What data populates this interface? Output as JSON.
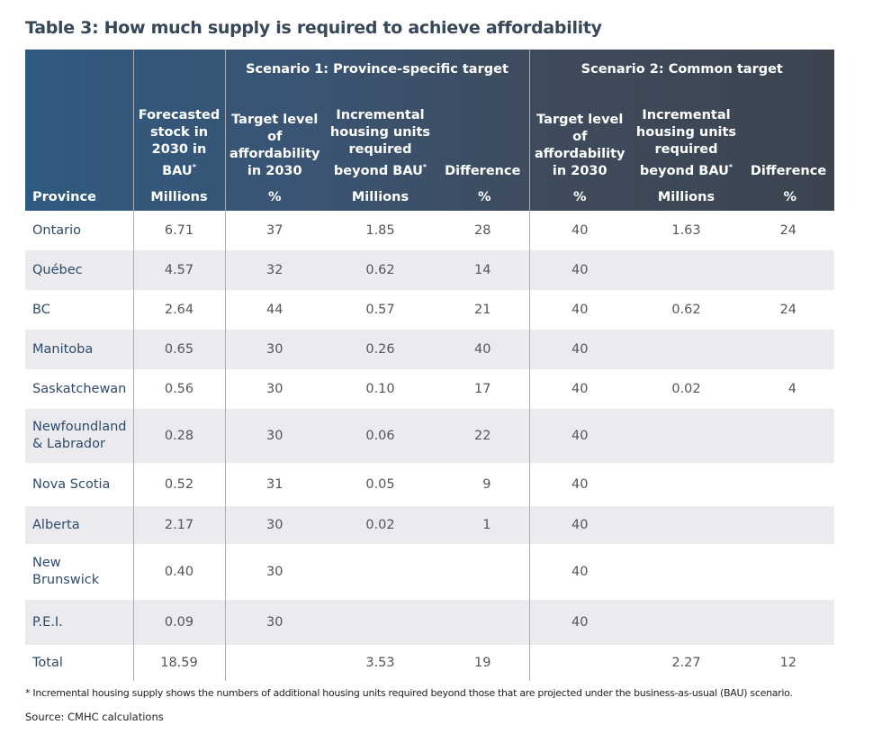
{
  "title": "Table 3: How much supply is required to achieve affordability",
  "headers": {
    "scenario1": "Scenario 1: Province-specific target",
    "scenario2": "Scenario 2: Common target",
    "province": "Province",
    "stock": "Forecasted stock in 2030 in BAU",
    "target": "Target level of affordability in 2030",
    "incremental": "Incremental housing units required beyond BAU",
    "difference": "Difference",
    "asterisk": "*",
    "units": {
      "stock": "Millions",
      "target": "%",
      "incremental": "Millions",
      "difference": "%"
    }
  },
  "rows": [
    {
      "province": "Ontario",
      "stock": "6.71",
      "t1": "37",
      "i1": "1.85",
      "d1": "28",
      "t2": "40",
      "i2": "1.63",
      "d2": "24"
    },
    {
      "province": "Québec",
      "stock": "4.57",
      "t1": "32",
      "i1": "0.62",
      "d1": "14",
      "t2": "40",
      "i2": "",
      "d2": ""
    },
    {
      "province": "BC",
      "stock": "2.64",
      "t1": "44",
      "i1": "0.57",
      "d1": "21",
      "t2": "40",
      "i2": "0.62",
      "d2": "24"
    },
    {
      "province": "Manitoba",
      "stock": "0.65",
      "t1": "30",
      "i1": "0.26",
      "d1": "40",
      "t2": "40",
      "i2": "",
      "d2": ""
    },
    {
      "province": "Saskatchewan",
      "stock": "0.56",
      "t1": "30",
      "i1": "0.10",
      "d1": "17",
      "t2": "40",
      "i2": "0.02",
      "d2": "4"
    },
    {
      "province": "Newfoundland & Labrador",
      "stock": "0.28",
      "t1": "30",
      "i1": "0.06",
      "d1": "22",
      "t2": "40",
      "i2": "",
      "d2": ""
    },
    {
      "province": "Nova Scotia",
      "stock": "0.52",
      "t1": "31",
      "i1": "0.05",
      "d1": "9",
      "t2": "40",
      "i2": "",
      "d2": ""
    },
    {
      "province": "Alberta",
      "stock": "2.17",
      "t1": "30",
      "i1": "0.02",
      "d1": "1",
      "t2": "40",
      "i2": "",
      "d2": ""
    },
    {
      "province": "New Brunswick",
      "stock": "0.40",
      "t1": "30",
      "i1": "",
      "d1": "",
      "t2": "40",
      "i2": "",
      "d2": ""
    },
    {
      "province": "P.E.I.",
      "stock": "0.09",
      "t1": "30",
      "i1": "",
      "d1": "",
      "t2": "40",
      "i2": "",
      "d2": ""
    },
    {
      "province": "Total",
      "stock": "18.59",
      "t1": "",
      "i1": "3.53",
      "d1": "19",
      "t2": "",
      "i2": "2.27",
      "d2": "12"
    }
  ],
  "footnote": "* Incremental housing supply shows the numbers of additional housing units required beyond those that are projected under the business-as-usual (BAU) scenario.",
  "source": "Source: CMHC calculations",
  "colors": {
    "header_left": "#2f5a80",
    "header_right": "#3c4450",
    "shade": "#ebebef",
    "province_text": "#2e4a6a"
  }
}
